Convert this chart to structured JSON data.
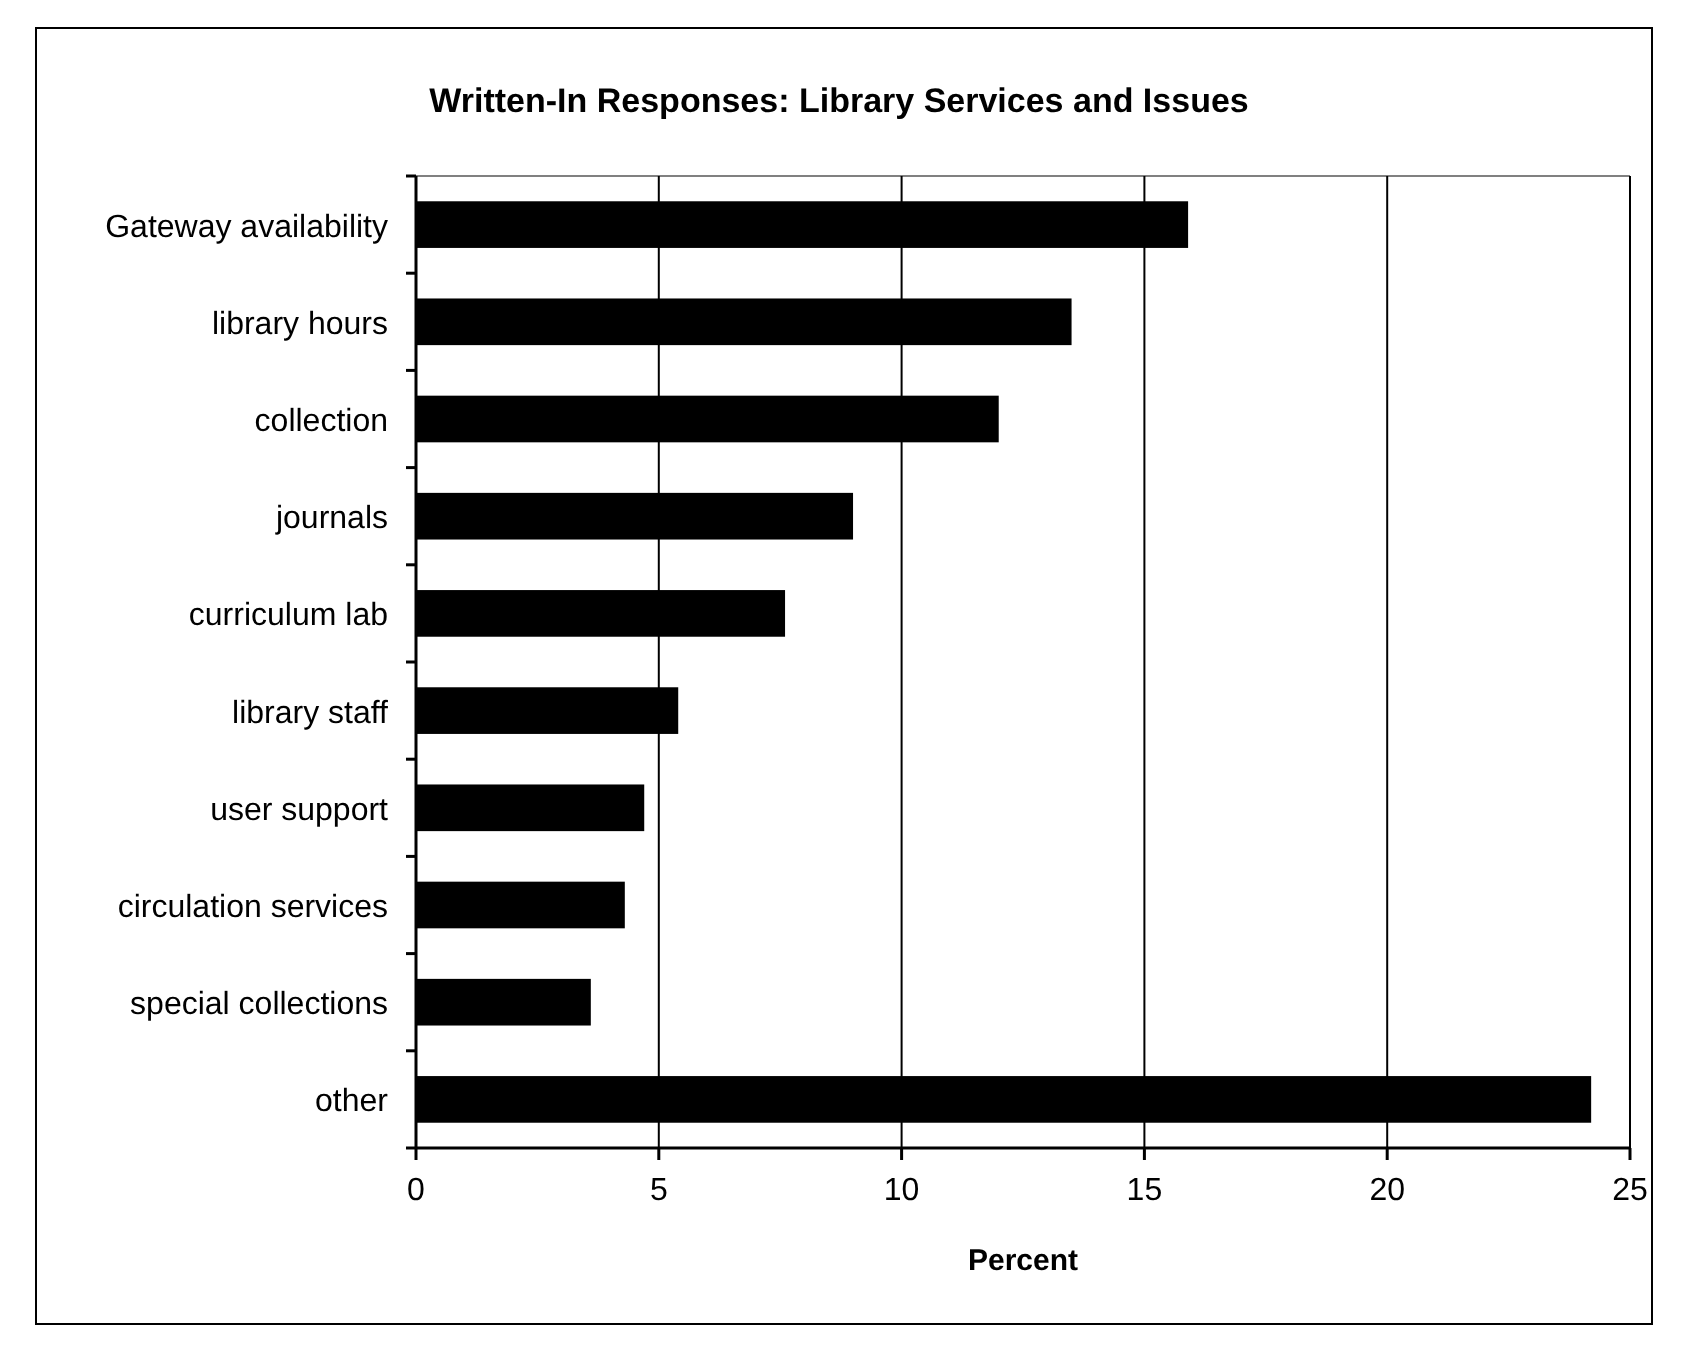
{
  "chart_data": {
    "type": "bar",
    "orientation": "horizontal",
    "title": "Written-In Responses: Library Services and Issues",
    "xlabel": "Percent",
    "categories": [
      "Gateway availability",
      "library hours",
      "collection",
      "journals",
      "curriculum lab",
      "library staff",
      "user support",
      "circulation services",
      "special collections",
      "other"
    ],
    "values": [
      15.9,
      13.5,
      12.0,
      9.0,
      7.6,
      5.4,
      4.7,
      4.3,
      3.6,
      24.2
    ],
    "color": "#000000",
    "xlim": [
      0,
      25
    ],
    "xticks": [
      0,
      5,
      10,
      15,
      20,
      25
    ],
    "grid": "x"
  }
}
